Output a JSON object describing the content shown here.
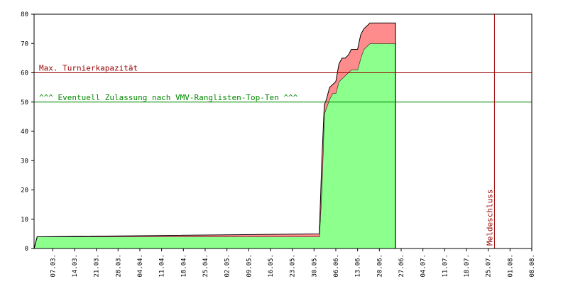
{
  "chart_data": {
    "type": "stacked-area",
    "x": [
      0,
      1,
      91.7,
      92.5,
      93.3,
      94,
      95,
      96,
      97,
      98,
      99,
      100,
      101,
      102,
      103,
      104,
      105,
      106,
      107,
      108,
      116.2
    ],
    "series": [
      {
        "color": "#8cff8c",
        "values": [
          0,
          4,
          4,
          20,
          46,
          48,
          51,
          53,
          53,
          57,
          58,
          59,
          60,
          61,
          61,
          61,
          65,
          68,
          69,
          70,
          70
        ]
      },
      {
        "color": "#ff8c8c",
        "values": [
          0,
          0,
          1,
          10,
          3,
          3,
          4,
          3,
          4,
          6,
          7,
          6,
          6,
          7,
          7,
          7,
          8,
          7,
          7,
          7,
          7
        ]
      }
    ],
    "xlim": [
      0,
      160
    ],
    "xticks": [
      {
        "value": 6,
        "label": "07.03."
      },
      {
        "value": 13,
        "label": "14.03."
      },
      {
        "value": 20,
        "label": "21.03."
      },
      {
        "value": 27,
        "label": "28.03."
      },
      {
        "value": 34,
        "label": "04.04."
      },
      {
        "value": 41,
        "label": "11.04."
      },
      {
        "value": 48,
        "label": "18.04."
      },
      {
        "value": 55,
        "label": "25.04."
      },
      {
        "value": 62,
        "label": "02.05."
      },
      {
        "value": 69,
        "label": "09.05."
      },
      {
        "value": 76,
        "label": "16.05."
      },
      {
        "value": 83,
        "label": "23.05."
      },
      {
        "value": 90,
        "label": "30.05."
      },
      {
        "value": 97,
        "label": "06.06."
      },
      {
        "value": 104,
        "label": "13.06."
      },
      {
        "value": 111,
        "label": "20.06."
      },
      {
        "value": 118,
        "label": "27.06."
      },
      {
        "value": 125,
        "label": "04.07."
      },
      {
        "value": 132,
        "label": "11.07."
      },
      {
        "value": 139,
        "label": "18.07."
      },
      {
        "value": 146,
        "label": "25.07."
      },
      {
        "value": 153,
        "label": "01.08."
      },
      {
        "value": 160,
        "label": "08.08."
      }
    ],
    "ylim": [
      0,
      80
    ],
    "yticks": [
      0,
      10,
      20,
      30,
      40,
      50,
      60,
      70,
      80
    ],
    "hlines": [
      {
        "value": 60,
        "label": "Max. Turnierkapazität",
        "color": "#990000"
      },
      {
        "value": 50,
        "label": "^^^ Eventuell Zulassung nach VMV-Ranglisten-Top-Ten ^^^",
        "color": "#008800"
      }
    ],
    "vlines": [
      {
        "value": 148,
        "label": "Meldeschluss",
        "color": "#990000"
      }
    ]
  }
}
